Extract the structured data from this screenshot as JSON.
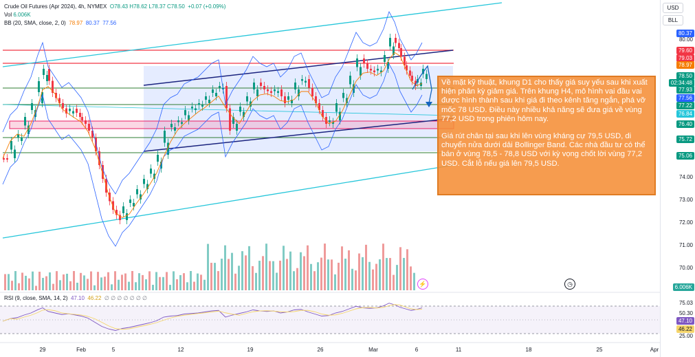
{
  "header": {
    "symbol": "Crude Oil Futures (Apr 2024), 4h, NYMEX",
    "ohlc": "O78.43 H78.62 L78.37 C78.50",
    "change": "+0.07 (+0.09%)",
    "vol_label": "Vol",
    "vol_value": "6.006K",
    "bb_label": "BB (20, SMA, close, 2, 0)",
    "bb_basis": "78.97",
    "bb_upper": "80.37",
    "bb_lower": "77.56"
  },
  "rsi_header": {
    "label": "RSI (9, close, SMA, 14, 2)",
    "rsi": "47.10",
    "ma": "46.22",
    "extra": "∅ ∅ ∅ ∅ ∅ ∅ ∅"
  },
  "units": [
    "USD",
    "BLL"
  ],
  "price_axis": [
    "80.00",
    "74.00",
    "73.00",
    "72.00",
    "71.00",
    "70.00"
  ],
  "price_badges": [
    {
      "text": "80.37",
      "color": "#2962ff"
    },
    {
      "text": "79.60",
      "color": "#f23645"
    },
    {
      "text": "79.03",
      "color": "#f23645"
    },
    {
      "text": "78.97",
      "color": "#f57c00"
    },
    {
      "text": "78.50",
      "color": "#089981"
    },
    {
      "text": "02:34:48",
      "color": "#089981"
    },
    {
      "text": "77.93",
      "color": "#089981"
    },
    {
      "text": "77.56",
      "color": "#2962ff"
    },
    {
      "text": "77.22",
      "color": "#089981"
    },
    {
      "text": "76.84",
      "color": "#26c6da"
    },
    {
      "text": "76.40",
      "color": "#089981"
    },
    {
      "text": "75.72",
      "color": "#089981"
    },
    {
      "text": "75.06",
      "color": "#089981"
    },
    {
      "text": "6.006K",
      "color": "#26a69a"
    }
  ],
  "rsi_axis": [
    "75.03",
    "50.30",
    "25.00"
  ],
  "rsi_badges": [
    {
      "text": "47.10",
      "color": "#7e57c2"
    },
    {
      "text": "46.22",
      "color": "#f5d56b"
    }
  ],
  "time_axis": [
    "29",
    "Feb",
    "5",
    "12",
    "19",
    "26",
    "Mar",
    "6",
    "11",
    "18",
    "25",
    "Apr"
  ],
  "note": {
    "p1": "Về mặt kỹ thuật, khung D1 cho thấy giá suy yếu sau khi xuất hiện phân kỳ giảm giá. Trên khung H4, mô hình vai đầu vai được hình thành sau khi giá đi theo kênh tăng ngắn, phá vỡ mốc 78 USD. Điều này nhiều khả năng sẽ đưa giá về vùng 77,2 USD trong phiên hôm nay.",
    "p2": "Giá rút chân tại sau khi lên vùng kháng cự 79,5 USD, di chuyển nửa dưới dải Bollinger Band. Các nhà đầu tư có thể bán ở vùng 78,5 - 78,8 USD với kỳ vọng chốt lời vùng 77,2 USD. Cắt lỗ nếu giá lên 79,5 USD."
  },
  "icons": {
    "alert": "flash-icon",
    "replay": "clock-icon"
  }
}
